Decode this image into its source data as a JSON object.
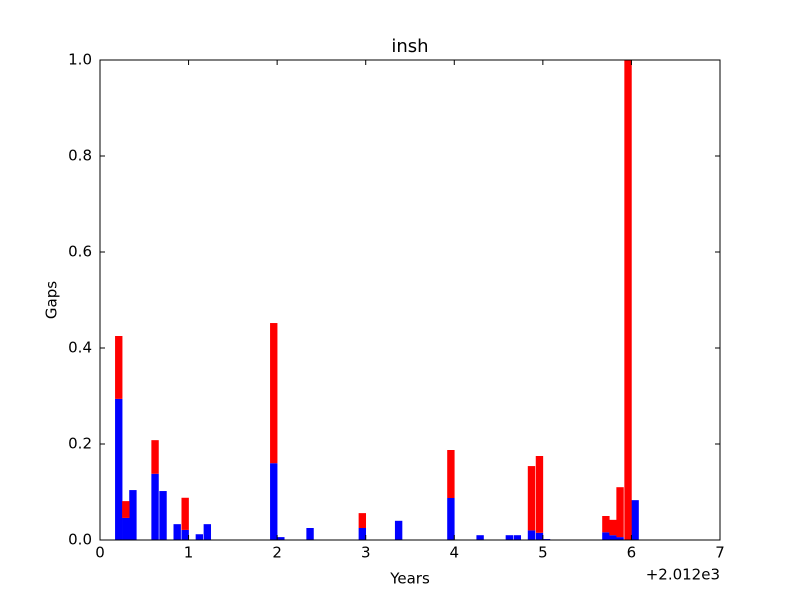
{
  "chart_data": {
    "type": "bar",
    "title": "insh",
    "x_label": "Years",
    "y_label": "Gaps",
    "x_offset_label": "+2.012e3",
    "x": [
      0.17,
      0.25,
      0.33,
      0.58,
      0.67,
      0.83,
      0.92,
      1.08,
      1.17,
      1.92,
      2.0,
      2.33,
      2.92,
      3.33,
      3.92,
      4.25,
      4.58,
      4.67,
      4.83,
      4.92,
      5.0,
      5.67,
      5.75,
      5.83,
      5.92,
      6.0
    ],
    "series": [
      {
        "color": "#0000ff",
        "values": [
          0.294,
          0.046,
          0.104,
          0.138,
          0.102,
          0.033,
          0.021,
          0.012,
          0.033,
          0.16,
          0.006,
          0.025,
          0.025,
          0.04,
          0.0875,
          0.01,
          0.01,
          0.01,
          0.02,
          0.015,
          0.002,
          0.016,
          0.01,
          0.006,
          0,
          0.083
        ]
      },
      {
        "color": "#ff0000",
        "values": [
          0.131,
          0.035,
          0,
          0.07,
          0,
          0,
          0.067,
          0,
          0,
          0.292,
          0,
          0,
          0.031,
          0,
          0.1,
          0,
          0,
          0,
          0.134,
          0.16,
          0,
          0.034,
          0.032,
          0.104,
          1.0,
          0
        ]
      }
    ],
    "stacked": true,
    "xlim": [
      0,
      7
    ],
    "xticks": [
      0,
      1,
      2,
      3,
      4,
      5,
      6,
      7
    ],
    "ylim": [
      0,
      1
    ],
    "yticks": [
      {
        "value": 0,
        "label": "0.0"
      },
      0.2,
      0.4,
      0.6,
      0.8,
      {
        "value": 1,
        "label": "1.0"
      }
    ],
    "grid": false
  }
}
